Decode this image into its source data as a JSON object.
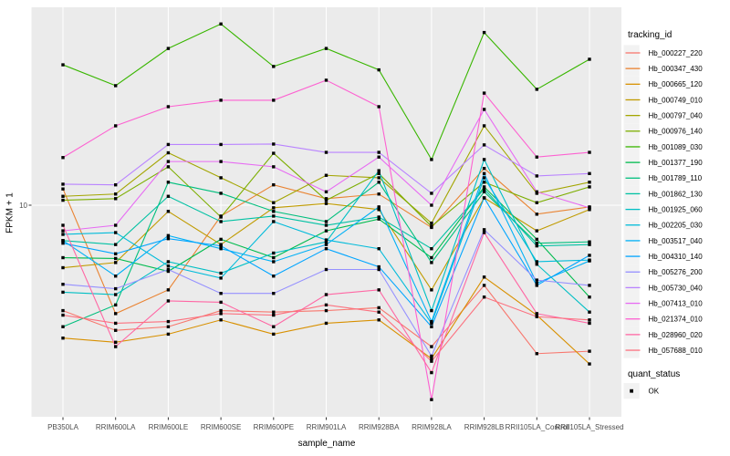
{
  "chart_data": {
    "type": "line",
    "title": "",
    "xlabel": "sample_name",
    "ylabel": "FPKM + 1",
    "y_scale": "log10",
    "ylim": [
      1,
      100
    ],
    "y_ticks": [
      {
        "label": "10",
        "value": 10
      }
    ],
    "grid": "white-on-gray",
    "legend": {
      "title": "tracking_id",
      "position": "right"
    },
    "points": {
      "shape": "square",
      "color": "#000000",
      "legend_title": "quant_status",
      "legend_label": "OK"
    },
    "categories": [
      "PB350LA",
      "RRIM600LA",
      "RRIM600LE",
      "RRIM600SE",
      "RRIM600PE",
      "RRIM901LA",
      "RRIM928BA",
      "RRIM928LA",
      "RRIM928LB",
      "RRII105LA_Control",
      "RRII105LA_Stressed"
    ],
    "series": [
      {
        "name": "Hb_000227_220",
        "color": "#F8766D",
        "values": [
          2.9,
          2.3,
          2.4,
          2.9,
          2.85,
          2.9,
          3.0,
          1.9,
          3.9,
          1.75,
          1.8
        ]
      },
      {
        "name": "Hb_000347_430",
        "color": "#EA8331",
        "values": [
          12.1,
          2.8,
          3.7,
          8.8,
          12.7,
          10.8,
          11.4,
          7.7,
          15.4,
          9.0,
          9.8
        ]
      },
      {
        "name": "Hb_000665_120",
        "color": "#D89000",
        "values": [
          2.1,
          2.0,
          2.2,
          2.6,
          2.2,
          2.5,
          2.6,
          1.65,
          4.3,
          2.75,
          1.55
        ]
      },
      {
        "name": "Hb_000749_010",
        "color": "#C09B00",
        "values": [
          4.8,
          5.1,
          9.3,
          6.3,
          9.7,
          10.2,
          9.5,
          3.7,
          10.9,
          7.4,
          9.5
        ]
      },
      {
        "name": "Hb_000797_040",
        "color": "#A3A500",
        "values": [
          11.1,
          11.4,
          18.5,
          13.8,
          10.3,
          14.2,
          13.8,
          8.1,
          25.4,
          11.5,
          13.1
        ]
      },
      {
        "name": "Hb_000976_140",
        "color": "#7CAE00",
        "values": [
          10.6,
          10.8,
          15.7,
          8.7,
          18.4,
          10.6,
          14.5,
          7.8,
          13.1,
          10.3,
          12.4
        ]
      },
      {
        "name": "Hb_001089_030",
        "color": "#39B600",
        "values": [
          52,
          40.7,
          63,
          84,
          51,
          63,
          49,
          17.1,
          76,
          39,
          55.5
        ]
      },
      {
        "name": "Hb_001377_190",
        "color": "#00BB4E",
        "values": [
          5.4,
          5.35,
          4.6,
          6.7,
          5.4,
          7.4,
          8.5,
          5.4,
          12.4,
          6.7,
          3.4
        ]
      },
      {
        "name": "Hb_001789_110",
        "color": "#00BF7D",
        "values": [
          2.4,
          3.1,
          13.1,
          11.5,
          9.3,
          8.25,
          13.1,
          5.1,
          11.7,
          6.4,
          6.5
        ]
      },
      {
        "name": "Hb_001862_130",
        "color": "#00C1A3",
        "values": [
          6.6,
          6.3,
          11.1,
          8.25,
          8.8,
          7.9,
          8.7,
          6.0,
          12.1,
          6.2,
          6.3
        ]
      },
      {
        "name": "Hb_001925_060",
        "color": "#00BFC4",
        "values": [
          3.6,
          3.5,
          5.15,
          4.5,
          5.7,
          6.5,
          15.0,
          2.9,
          17.1,
          5.0,
          2.85
        ]
      },
      {
        "name": "Hb_002205_030",
        "color": "#00BBDA",
        "values": [
          7.1,
          7.25,
          4.9,
          4.25,
          8.25,
          6.65,
          6.0,
          2.5,
          13.8,
          5.15,
          5.25
        ]
      },
      {
        "name": "Hb_003517_040",
        "color": "#00B0F6",
        "values": [
          6.6,
          4.35,
          7.0,
          6.0,
          5.15,
          6.3,
          9.8,
          2.55,
          14.5,
          4.0,
          5.2
        ]
      },
      {
        "name": "Hb_004310_140",
        "color": "#00A5FF",
        "values": [
          6.4,
          5.65,
          6.75,
          6.2,
          4.35,
          6.0,
          4.85,
          2.4,
          10.9,
          3.9,
          5.55
        ]
      },
      {
        "name": "Hb_005276_200",
        "color": "#9590FF",
        "values": [
          3.95,
          3.75,
          4.7,
          3.55,
          3.55,
          4.7,
          4.7,
          1.7,
          7.5,
          4.15,
          3.9
        ]
      },
      {
        "name": "Hb_005730_040",
        "color": "#B983FF",
        "values": [
          12.8,
          12.7,
          20.4,
          20.4,
          20.5,
          18.6,
          18.6,
          11.5,
          20.3,
          14.1,
          14.5
        ]
      },
      {
        "name": "Hb_007413_010",
        "color": "#E76BF3",
        "values": [
          7.4,
          7.9,
          16.7,
          16.7,
          15.7,
          11.7,
          17.6,
          10.0,
          30.8,
          11.7,
          9.7
        ]
      },
      {
        "name": "Hb_021374_010",
        "color": "#FD61D1",
        "values": [
          17.5,
          25.4,
          31.8,
          34.3,
          34.3,
          43.4,
          31.8,
          1.02,
          37.3,
          17.6,
          18.6
        ]
      },
      {
        "name": "Hb_028960_020",
        "color": "#FF67A4",
        "values": [
          7.9,
          1.9,
          3.25,
          3.2,
          2.4,
          3.5,
          3.7,
          1.4,
          7.25,
          2.8,
          2.5
        ]
      },
      {
        "name": "Hb_057688_010",
        "color": "#FC717F",
        "values": [
          2.75,
          2.5,
          2.55,
          2.8,
          2.75,
          3.1,
          2.85,
          1.6,
          3.4,
          2.7,
          2.6
        ]
      }
    ]
  },
  "colors": {
    "panel_bg": "#EBEBEB",
    "grid": "#FFFFFF",
    "tick_text": "#4D4D4D",
    "axis_title_text": "#000000",
    "legend_key_bg": "#F2F2F2",
    "point": "#000000",
    "tick_mark": "#333333"
  }
}
